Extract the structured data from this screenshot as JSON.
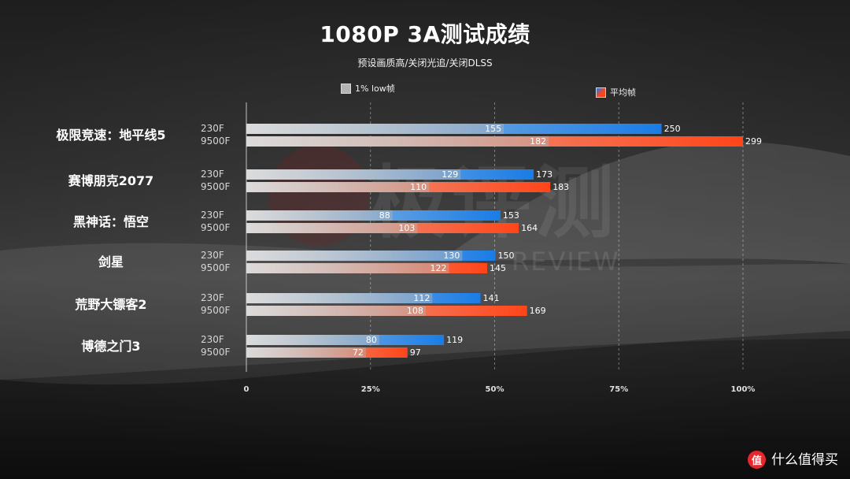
{
  "chart_data": {
    "type": "bar",
    "orientation": "horizontal",
    "title": "1080P 3A测试成绩",
    "subtitle": "预设画质高/关闭光追/关闭DLSS",
    "categories": [
      "极限竞速：地平线5",
      "赛博朋克2077",
      "黑神话：悟空",
      "剑星",
      "荒野大镖客2",
      "博德之门3"
    ],
    "groups": [
      "230F",
      "9500F"
    ],
    "series": [
      {
        "name": "1% low帧",
        "group": "230F",
        "values": [
          155,
          129,
          88,
          130,
          112,
          80
        ]
      },
      {
        "name": "平均帧",
        "group": "230F",
        "values": [
          250,
          173,
          153,
          150,
          141,
          119
        ]
      },
      {
        "name": "1% low帧",
        "group": "9500F",
        "values": [
          182,
          110,
          103,
          122,
          108,
          72
        ]
      },
      {
        "name": "平均帧",
        "group": "9500F",
        "values": [
          299,
          183,
          164,
          145,
          169,
          97
        ]
      }
    ],
    "legend": [
      "1% low帧",
      "平均帧"
    ],
    "legend_placement": "top",
    "x_ticks": [
      "0",
      "25%",
      "50%",
      "75%",
      "100%"
    ],
    "xlim_percent": [
      0,
      100
    ],
    "grid": true
  },
  "colors": {
    "low_1pct": "#b4b4b4",
    "avg_230F": "#1a7ce6",
    "avg_9500F": "#ff4519",
    "logo": "#e4262d"
  },
  "watermark": {
    "main": "极评测",
    "sub": "REVIEW"
  },
  "logo": {
    "glyph": "值",
    "text": "什么值得买"
  }
}
